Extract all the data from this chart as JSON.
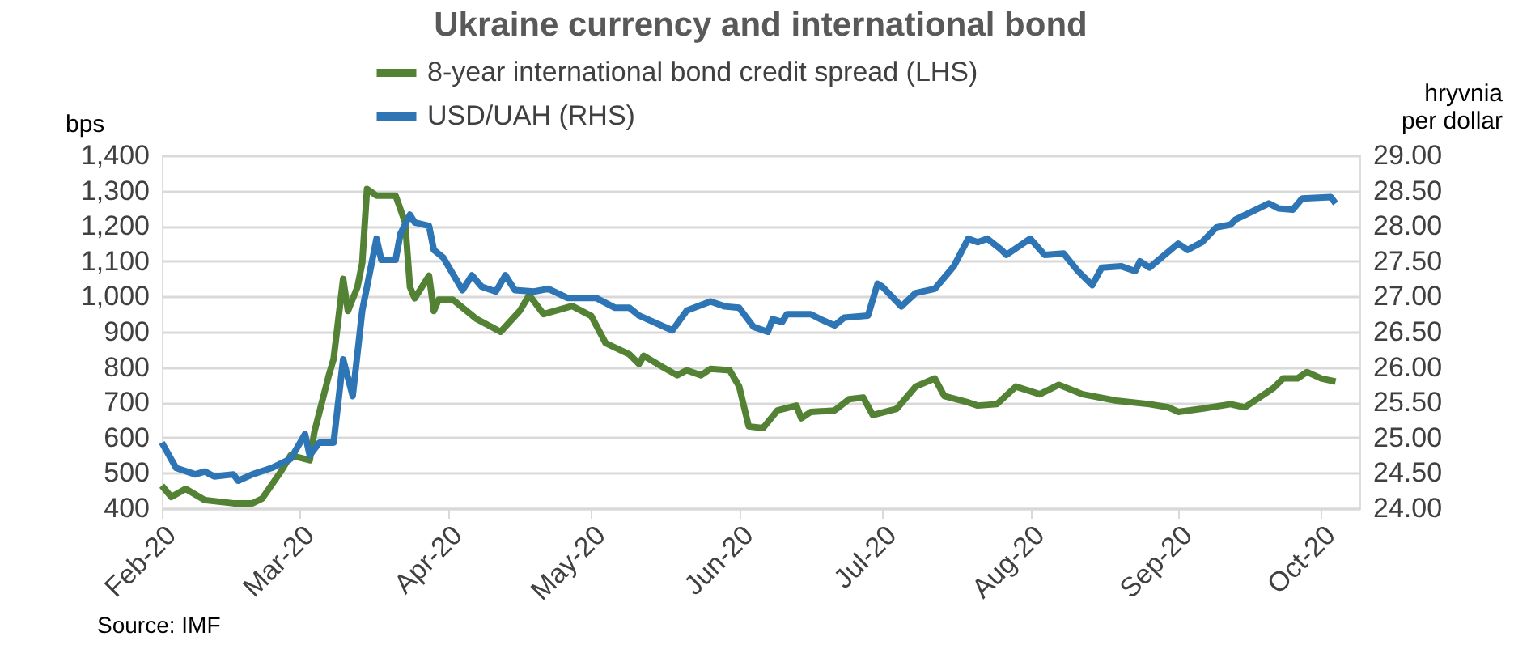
{
  "chart_data": {
    "type": "line",
    "title": "Ukraine currency and international bond",
    "ylabel": "bps",
    "y2label": "hryvnia per dollar",
    "annotations": [
      "Source: IMF"
    ],
    "xlim": [
      "2020-02-01",
      "2020-10-09"
    ],
    "xticks": [
      {
        "value": "2020-02-01",
        "label": "Feb-20"
      },
      {
        "value": "2020-03-01",
        "label": "Mar-20"
      },
      {
        "value": "2020-04-01",
        "label": "Apr-20"
      },
      {
        "value": "2020-05-01",
        "label": "May-20"
      },
      {
        "value": "2020-06-01",
        "label": "Jun-20"
      },
      {
        "value": "2020-07-01",
        "label": "Jul-20"
      },
      {
        "value": "2020-08-01",
        "label": "Aug-20"
      },
      {
        "value": "2020-09-01",
        "label": "Sep-20"
      },
      {
        "value": "2020-10-01",
        "label": "Oct-20"
      }
    ],
    "ylim": [
      400,
      1400
    ],
    "yticks": [
      400,
      500,
      600,
      700,
      800,
      900,
      {
        "value": 1000,
        "label": "1,000"
      },
      {
        "value": 1100,
        "label": "1,100"
      },
      {
        "value": 1200,
        "label": "1,200"
      },
      {
        "value": 1300,
        "label": "1,300"
      },
      {
        "value": 1400,
        "label": "1,400"
      }
    ],
    "y2lim": [
      24,
      29
    ],
    "y2ticks": [
      {
        "value": 24,
        "label": "24.00"
      },
      {
        "value": 24.5,
        "label": "24.50"
      },
      {
        "value": 25,
        "label": "25.00"
      },
      {
        "value": 25.5,
        "label": "25.50"
      },
      {
        "value": 26,
        "label": "26.00"
      },
      {
        "value": 26.5,
        "label": "26.50"
      },
      {
        "value": 27,
        "label": "27.00"
      },
      {
        "value": 27.5,
        "label": "27.50"
      },
      {
        "value": 28,
        "label": "28.00"
      },
      {
        "value": 28.5,
        "label": "28.50"
      },
      {
        "value": 29,
        "label": "29.00"
      }
    ],
    "grid": "y",
    "legend": "top",
    "line_style": "solid",
    "marker": "none",
    "series": [
      {
        "name": "8-year international bond credit spread (LHS)",
        "color": "#548235",
        "x": [
          "2020-02-01",
          "2020-02-03",
          "2020-02-06",
          "2020-02-10",
          "2020-02-16",
          "2020-02-20",
          "2020-02-22",
          "2020-02-26",
          "2020-02-28",
          "2020-03-03",
          "2020-03-04",
          "2020-03-07",
          "2020-03-08",
          "2020-03-10",
          "2020-03-11",
          "2020-03-13",
          "2020-03-14",
          "2020-03-15",
          "2020-03-17",
          "2020-03-21",
          "2020-03-23",
          "2020-03-24",
          "2020-03-25",
          "2020-03-28",
          "2020-03-29",
          "2020-03-30",
          "2020-04-02",
          "2020-04-07",
          "2020-04-12",
          "2020-04-16",
          "2020-04-18",
          "2020-04-21",
          "2020-04-27",
          "2020-05-01",
          "2020-05-04",
          "2020-05-09",
          "2020-05-11",
          "2020-05-12",
          "2020-05-16",
          "2020-05-19",
          "2020-05-21",
          "2020-05-24",
          "2020-05-26",
          "2020-05-30",
          "2020-06-01",
          "2020-06-03",
          "2020-06-06",
          "2020-06-09",
          "2020-06-13",
          "2020-06-14",
          "2020-06-16",
          "2020-06-21",
          "2020-06-24",
          "2020-06-27",
          "2020-06-29",
          "2020-07-04",
          "2020-07-08",
          "2020-07-12",
          "2020-07-14",
          "2020-07-19",
          "2020-07-21",
          "2020-07-25",
          "2020-07-29",
          "2020-08-03",
          "2020-08-07",
          "2020-08-12",
          "2020-08-19",
          "2020-08-26",
          "2020-08-30",
          "2020-09-01",
          "2020-09-06",
          "2020-09-12",
          "2020-09-15",
          "2020-09-21",
          "2020-09-23",
          "2020-09-26",
          "2020-09-28",
          "2020-10-01",
          "2020-10-04"
        ],
        "values": [
          464,
          432,
          455,
          423,
          414,
          414,
          427,
          505,
          550,
          536,
          618,
          777,
          823,
          1050,
          959,
          1027,
          1095,
          1305,
          1286,
          1286,
          1209,
          1027,
          995,
          1059,
          959,
          991,
          991,
          936,
          900,
          959,
          1004,
          950,
          973,
          945,
          868,
          836,
          809,
          832,
          800,
          777,
          791,
          777,
          795,
          791,
          745,
          632,
          627,
          677,
          691,
          655,
          673,
          677,
          709,
          714,
          664,
          682,
          745,
          768,
          718,
          700,
          691,
          695,
          745,
          723,
          750,
          723,
          705,
          695,
          686,
          673,
          682,
          695,
          686,
          741,
          768,
          768,
          786,
          768,
          759
        ]
      },
      {
        "name": "USD/UAH (RHS)",
        "color": "#2e75b6",
        "axis": "y2",
        "x": [
          "2020-02-01",
          "2020-02-04",
          "2020-02-08",
          "2020-02-10",
          "2020-02-12",
          "2020-02-16",
          "2020-02-17",
          "2020-02-20",
          "2020-02-24",
          "2020-02-28",
          "2020-03-02",
          "2020-03-03",
          "2020-03-05",
          "2020-03-08",
          "2020-03-10",
          "2020-03-12",
          "2020-03-14",
          "2020-03-17",
          "2020-03-18",
          "2020-03-21",
          "2020-03-22",
          "2020-03-24",
          "2020-03-25",
          "2020-03-28",
          "2020-03-29",
          "2020-03-31",
          "2020-04-04",
          "2020-04-06",
          "2020-04-08",
          "2020-04-11",
          "2020-04-13",
          "2020-04-15",
          "2020-04-19",
          "2020-04-22",
          "2020-04-26",
          "2020-05-02",
          "2020-05-06",
          "2020-05-09",
          "2020-05-11",
          "2020-05-18",
          "2020-05-21",
          "2020-05-26",
          "2020-05-29",
          "2020-06-01",
          "2020-06-04",
          "2020-06-07",
          "2020-06-08",
          "2020-06-10",
          "2020-06-11",
          "2020-06-16",
          "2020-06-18",
          "2020-06-21",
          "2020-06-23",
          "2020-06-28",
          "2020-06-30",
          "2020-07-01",
          "2020-07-05",
          "2020-07-08",
          "2020-07-12",
          "2020-07-16",
          "2020-07-19",
          "2020-07-21",
          "2020-07-23",
          "2020-07-26",
          "2020-07-27",
          "2020-08-01",
          "2020-08-04",
          "2020-08-08",
          "2020-08-11",
          "2020-08-14",
          "2020-08-16",
          "2020-08-20",
          "2020-08-23",
          "2020-08-24",
          "2020-08-26",
          "2020-09-01",
          "2020-09-03",
          "2020-09-06",
          "2020-09-09",
          "2020-09-12",
          "2020-09-13",
          "2020-09-20",
          "2020-09-22",
          "2020-09-25",
          "2020-09-27",
          "2020-10-03",
          "2020-10-04"
        ],
        "values": [
          24.93,
          24.57,
          24.48,
          24.52,
          24.45,
          24.48,
          24.39,
          24.48,
          24.57,
          24.7,
          25.05,
          24.75,
          24.93,
          24.93,
          26.11,
          25.59,
          26.8,
          27.82,
          27.52,
          27.52,
          27.89,
          28.16,
          28.05,
          28.0,
          27.66,
          27.55,
          27.09,
          27.3,
          27.14,
          27.07,
          27.3,
          27.09,
          27.07,
          27.11,
          26.98,
          26.98,
          26.84,
          26.84,
          26.73,
          26.52,
          26.8,
          26.93,
          26.86,
          26.84,
          26.57,
          26.5,
          26.68,
          26.64,
          26.75,
          26.75,
          26.68,
          26.59,
          26.7,
          26.73,
          27.18,
          27.14,
          26.86,
          27.05,
          27.11,
          27.43,
          27.82,
          27.77,
          27.82,
          27.66,
          27.59,
          27.82,
          27.59,
          27.61,
          27.36,
          27.16,
          27.41,
          27.43,
          27.36,
          27.5,
          27.41,
          27.75,
          27.66,
          27.77,
          27.98,
          28.02,
          28.09,
          28.32,
          28.25,
          28.23,
          28.39,
          28.41,
          28.32
        ]
      }
    ]
  }
}
